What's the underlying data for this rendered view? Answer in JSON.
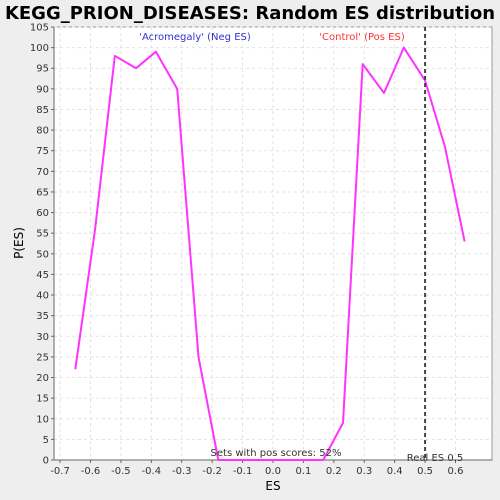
{
  "chart_data": {
    "type": "line",
    "title": "KEGG_PRION_DISEASES: Random ES distribution",
    "xlabel": "ES",
    "ylabel": "P(ES)",
    "xlim": [
      -0.72,
      0.72
    ],
    "ylim": [
      0,
      105
    ],
    "x_ticks": [
      "-0.7",
      "-0.6",
      "-0.5",
      "-0.4",
      "-0.3",
      "-0.2",
      "-0.1",
      "0.0",
      "0.1",
      "0.2",
      "0.3",
      "0.4",
      "0.5",
      "0.6"
    ],
    "y_ticks": [
      "0",
      "5",
      "10",
      "15",
      "20",
      "25",
      "30",
      "35",
      "40",
      "45",
      "50",
      "55",
      "60",
      "65",
      "70",
      "75",
      "80",
      "85",
      "90",
      "95",
      "100",
      "105"
    ],
    "grid": true,
    "series": [
      {
        "color": "#ff33ff",
        "x": [
          -0.65,
          -0.585,
          -0.52,
          -0.45,
          -0.385,
          -0.315,
          -0.245,
          -0.18,
          -0.11,
          -0.04,
          0.03,
          0.1,
          0.165,
          0.23,
          0.295,
          0.365,
          0.43,
          0.5,
          0.565,
          0.63
        ],
        "y": [
          22,
          56,
          98,
          95,
          99,
          90,
          25,
          0,
          0,
          0,
          0,
          0,
          0,
          9,
          96,
          89,
          100,
          92,
          76,
          53
        ]
      }
    ],
    "real_es": 0.5,
    "annotations": {
      "neg_label": "'Acromegaly' (Neg ES)",
      "neg_color": "#3333cc",
      "pos_label": "'Control' (Pos ES)",
      "pos_color": "#ff3333",
      "pos_scores": "Sets with pos scores: 52%",
      "real_es_label": "Real ES 0.5"
    }
  }
}
